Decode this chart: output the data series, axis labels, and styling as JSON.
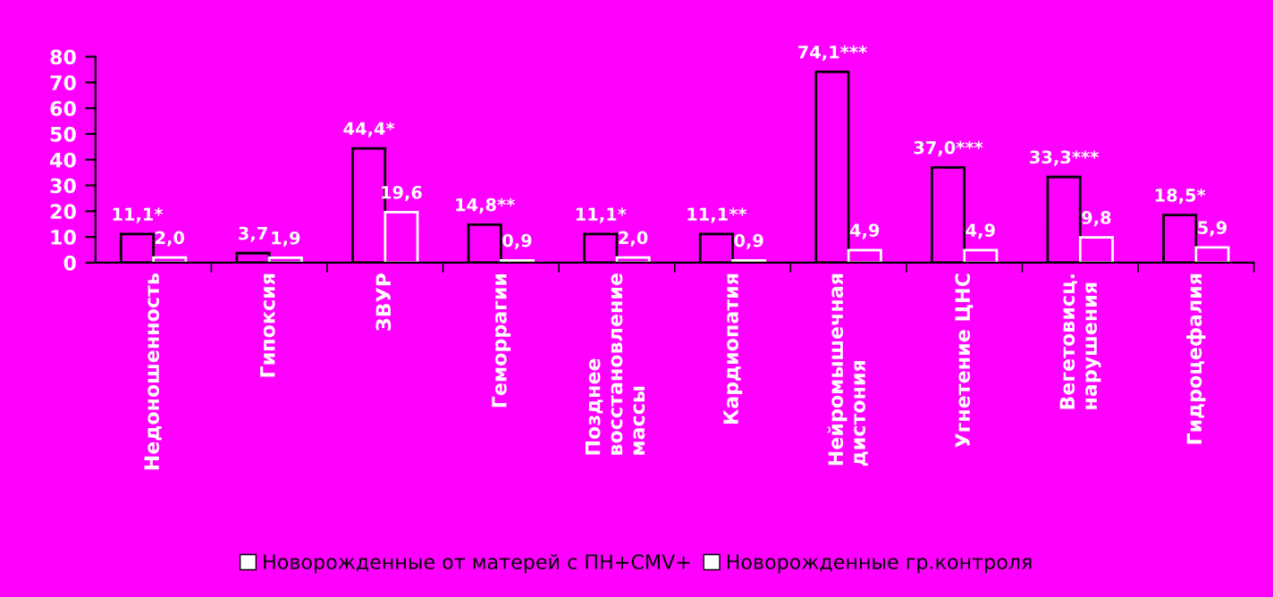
{
  "chart_data": {
    "type": "bar",
    "categories": [
      "Недоношенность",
      "Гипоксия",
      "ЗВУР",
      "Геморрагии",
      "Позднее\nвосстановление\nмассы",
      "Кардиопатия",
      "Нейромышечная\nдистония",
      "Угнетение ЦНС",
      "Вегетовисц.\nнарушения",
      "Гидроцефалия"
    ],
    "series": [
      {
        "name": "Новорожденные от матерей с ПН+CMV+",
        "color": "#000000",
        "values": [
          11.1,
          3.7,
          44.4,
          14.8,
          11.1,
          11.1,
          74.1,
          37.0,
          33.3,
          18.5
        ],
        "value_labels": [
          "11,1*",
          "3,7",
          "44,4*",
          "14,8**",
          "11,1*",
          "11,1**",
          "74,1***",
          "37,0***",
          "33,3***",
          "18,5*"
        ]
      },
      {
        "name": "Новорожденные гр.контроля",
        "color": "#ffffff",
        "values": [
          2.0,
          1.9,
          19.6,
          0.9,
          2.0,
          0.9,
          4.9,
          4.9,
          9.8,
          5.9
        ],
        "value_labels": [
          "2,0",
          "1,9",
          "19,6",
          "0,9",
          "2,0",
          "0,9",
          "4,9",
          "4,9",
          "9,8",
          "5,9"
        ]
      }
    ],
    "ylim": [
      0,
      80
    ],
    "yticks": [
      0,
      10,
      20,
      30,
      40,
      50,
      60,
      70,
      80
    ],
    "grid": false,
    "legend": "bottom"
  }
}
